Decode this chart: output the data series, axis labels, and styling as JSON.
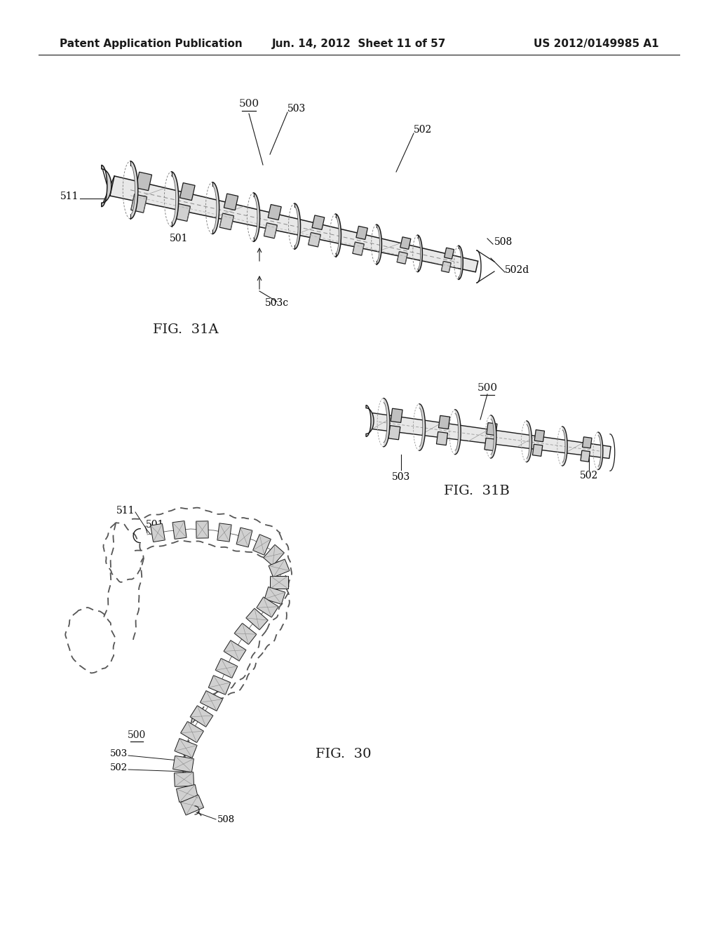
{
  "background_color": "#ffffff",
  "header_left": "Patent Application Publication",
  "header_mid": "Jun. 14, 2012  Sheet 11 of 57",
  "header_right": "US 2012/0149985 A1",
  "line_color": "#1a1a1a",
  "text_color": "#1a1a1a",
  "gray_fill": "#cccccc",
  "dark_gray": "#888888"
}
